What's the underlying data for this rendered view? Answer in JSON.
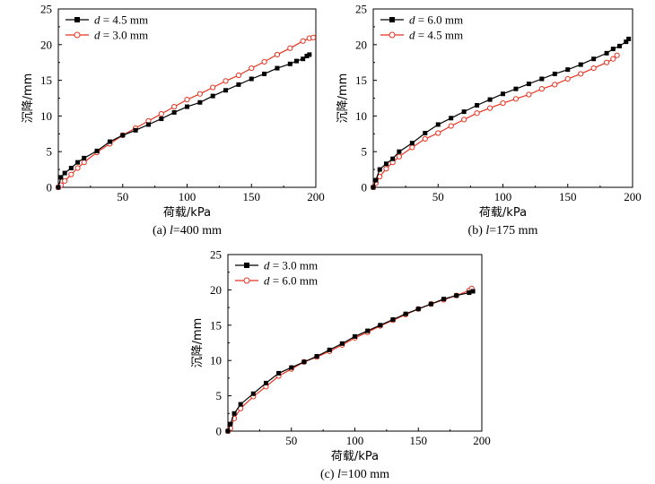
{
  "chart_data": [
    {
      "type": "line",
      "caption_prefix": "(a) ",
      "caption_var": "l",
      "caption_rest": "=400 mm",
      "xlabel": "荷载/kPa",
      "ylabel": "沉降/mm",
      "xlim": [
        0,
        200
      ],
      "ylim": [
        0,
        25
      ],
      "xticks": [
        "50",
        "100",
        "150",
        "200"
      ],
      "yticks": [
        "0",
        "5",
        "10",
        "15",
        "20",
        "25"
      ],
      "legend_position": "top-left",
      "series": [
        {
          "name_var": "d",
          "name_rest": " = 4.5 mm",
          "color": "#000000",
          "marker": "filled-square",
          "x": [
            0,
            2,
            5,
            10,
            15,
            20,
            30,
            40,
            50,
            60,
            70,
            80,
            90,
            100,
            110,
            120,
            130,
            140,
            150,
            160,
            170,
            180,
            185,
            190,
            193,
            195
          ],
          "y": [
            0,
            1.4,
            2.0,
            2.7,
            3.5,
            4.1,
            5.1,
            6.4,
            7.3,
            8.0,
            8.8,
            9.6,
            10.5,
            11.3,
            11.9,
            12.8,
            13.6,
            14.4,
            15.2,
            15.9,
            16.7,
            17.3,
            17.7,
            18.0,
            18.4,
            18.6
          ]
        },
        {
          "name_var": "d",
          "name_rest": " = 3.0 mm",
          "color": "#e8321f",
          "marker": "open-circle",
          "x": [
            0,
            2,
            5,
            10,
            15,
            20,
            30,
            40,
            50,
            60,
            70,
            80,
            90,
            100,
            110,
            120,
            130,
            140,
            150,
            160,
            170,
            180,
            190,
            195,
            198
          ],
          "y": [
            0,
            0.3,
            0.9,
            1.8,
            2.7,
            3.5,
            4.9,
            6.1,
            7.3,
            8.3,
            9.3,
            10.3,
            11.3,
            12.3,
            13.1,
            14.0,
            14.9,
            15.7,
            16.7,
            17.6,
            18.6,
            19.5,
            20.5,
            20.9,
            21.0
          ]
        }
      ]
    },
    {
      "type": "line",
      "caption_prefix": "(b) ",
      "caption_var": "l",
      "caption_rest": "=175 mm",
      "xlabel": "荷载/kPa",
      "ylabel": "沉降/mm",
      "xlim": [
        0,
        200
      ],
      "ylim": [
        0,
        25
      ],
      "xticks": [
        "50",
        "100",
        "150",
        "200"
      ],
      "yticks": [
        "0",
        "5",
        "10",
        "15",
        "20",
        "25"
      ],
      "legend_position": "top-left",
      "series": [
        {
          "name_var": "d",
          "name_rest": " = 6.0 mm",
          "color": "#000000",
          "marker": "filled-square",
          "x": [
            0,
            2,
            5,
            10,
            15,
            20,
            30,
            40,
            50,
            60,
            70,
            80,
            90,
            100,
            110,
            120,
            130,
            140,
            150,
            160,
            170,
            180,
            185,
            190,
            195,
            197
          ],
          "y": [
            0,
            1.0,
            2.5,
            3.3,
            4.0,
            5.0,
            6.2,
            7.6,
            8.8,
            9.7,
            10.6,
            11.5,
            12.3,
            13.1,
            13.8,
            14.5,
            15.2,
            15.9,
            16.5,
            17.2,
            18.0,
            18.8,
            19.4,
            19.8,
            20.4,
            20.8
          ]
        },
        {
          "name_var": "d",
          "name_rest": " = 4.5 mm",
          "color": "#e8321f",
          "marker": "open-circle",
          "x": [
            0,
            2,
            5,
            10,
            15,
            20,
            30,
            40,
            50,
            60,
            70,
            80,
            90,
            100,
            110,
            120,
            130,
            140,
            150,
            160,
            170,
            180,
            185,
            188
          ],
          "y": [
            0,
            0.6,
            1.5,
            2.6,
            3.5,
            4.3,
            5.6,
            6.8,
            7.6,
            8.6,
            9.5,
            10.4,
            11.1,
            11.8,
            12.4,
            13.0,
            13.8,
            14.4,
            15.2,
            15.9,
            16.7,
            17.5,
            18.0,
            18.5
          ]
        }
      ]
    },
    {
      "type": "line",
      "caption_prefix": "(c) ",
      "caption_var": "l",
      "caption_rest": "=100 mm",
      "xlabel": "荷载/kPa",
      "ylabel": "沉降/mm",
      "xlim": [
        0,
        200
      ],
      "ylim": [
        0,
        25
      ],
      "xticks": [
        "50",
        "100",
        "150",
        "200"
      ],
      "yticks": [
        "0",
        "5",
        "10",
        "15",
        "20",
        "25"
      ],
      "legend_position": "top-left",
      "series": [
        {
          "name_var": "d",
          "name_rest": " = 3.0 mm",
          "color": "#000000",
          "marker": "filled-square",
          "x": [
            0,
            2,
            5,
            10,
            20,
            30,
            40,
            50,
            60,
            70,
            80,
            90,
            100,
            110,
            120,
            130,
            140,
            150,
            160,
            170,
            180,
            190,
            193
          ],
          "y": [
            0,
            1.0,
            2.5,
            3.8,
            5.3,
            6.8,
            8.2,
            9.0,
            9.8,
            10.6,
            11.5,
            12.4,
            13.4,
            14.2,
            15.0,
            15.8,
            16.6,
            17.3,
            18.0,
            18.7,
            19.2,
            19.6,
            19.8
          ]
        },
        {
          "name_var": "d",
          "name_rest": " = 6.0 mm",
          "color": "#e8321f",
          "marker": "open-circle",
          "x": [
            0,
            2,
            5,
            10,
            20,
            30,
            40,
            50,
            60,
            70,
            80,
            90,
            100,
            110,
            120,
            130,
            140,
            150,
            160,
            170,
            180,
            190,
            192
          ],
          "y": [
            0,
            0.4,
            1.8,
            3.2,
            4.9,
            6.3,
            7.8,
            8.8,
            9.8,
            10.5,
            11.3,
            12.2,
            13.2,
            14.0,
            14.9,
            15.7,
            16.5,
            17.3,
            18.0,
            18.6,
            19.2,
            19.9,
            20.2
          ]
        }
      ]
    }
  ]
}
